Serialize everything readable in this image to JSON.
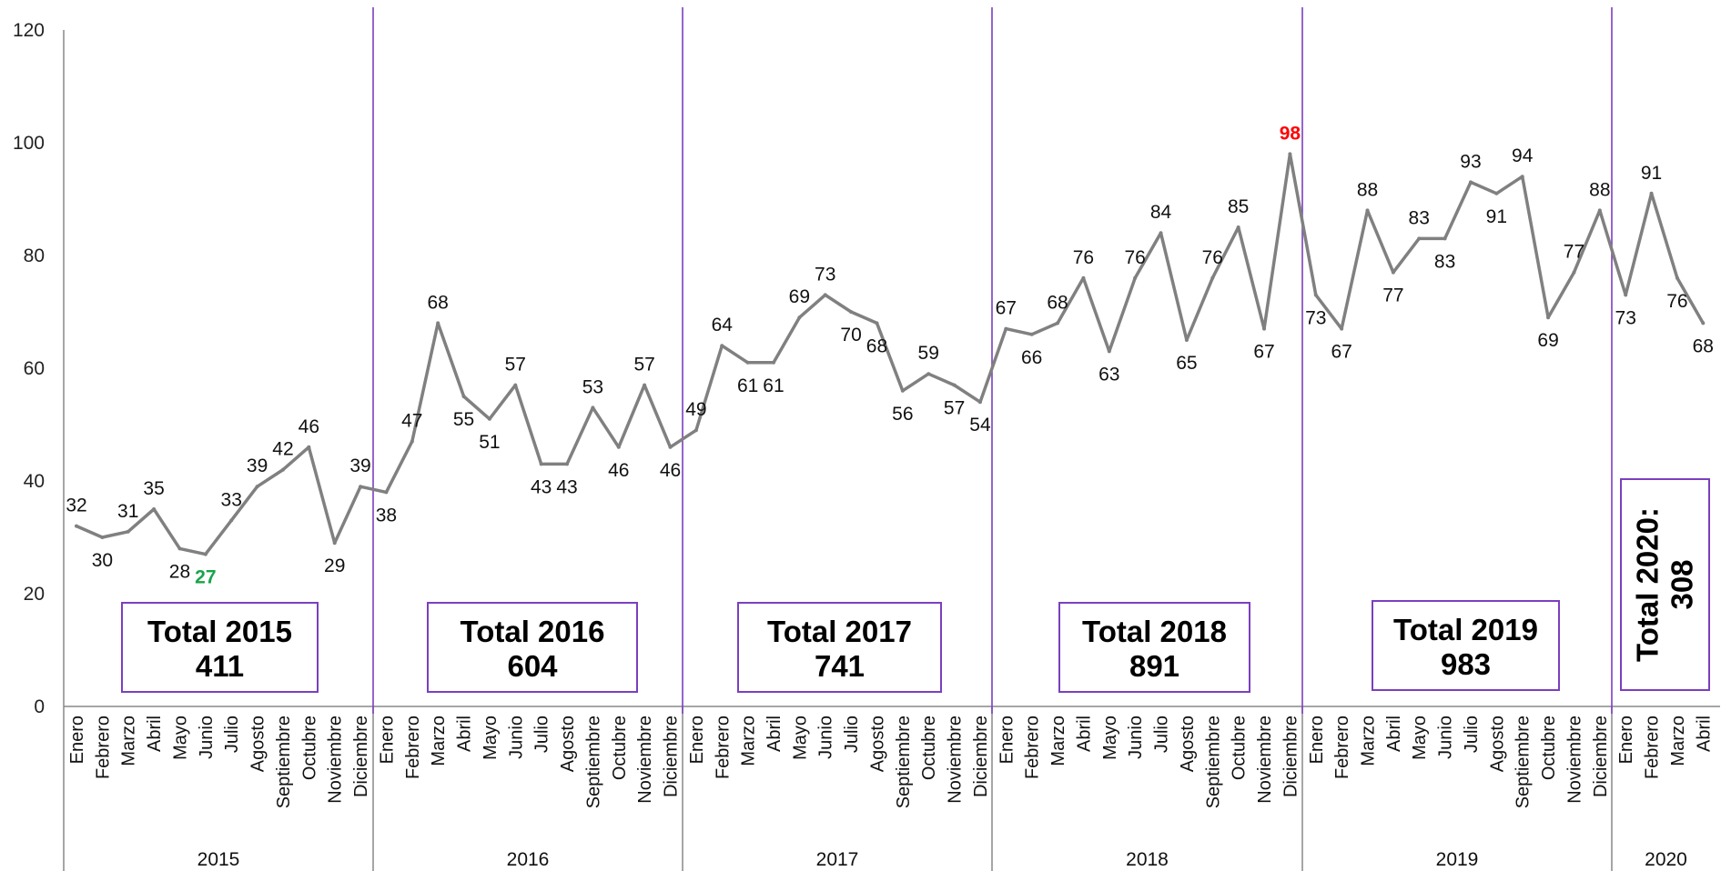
{
  "chart_data": {
    "type": "line",
    "ylim": [
      0,
      120
    ],
    "yticks": [
      0,
      20,
      40,
      60,
      80,
      100,
      120
    ],
    "line_color": "#808080",
    "divider_color": "#7b3fbf",
    "min_label_color": "#1aa34a",
    "max_label_color": "#ff0000",
    "years": [
      {
        "label": "2015",
        "months": [
          "Enero",
          "Febrero",
          "Marzo",
          "Abril",
          "Mayo",
          "Junio",
          "Julio",
          "Agosto",
          "Septiembre",
          "Octubre",
          "Noviembre",
          "Diciembre"
        ],
        "values": [
          32,
          30,
          31,
          35,
          28,
          27,
          33,
          39,
          42,
          46,
          29,
          39
        ],
        "total": "Total 2015\n411"
      },
      {
        "label": "2016",
        "months": [
          "Enero",
          "Febrero",
          "Marzo",
          "Abril",
          "Mayo",
          "Junio",
          "Julio",
          "Agosto",
          "Septiembre",
          "Octubre",
          "Noviembre",
          "Diciembre"
        ],
        "values": [
          38,
          47,
          68,
          55,
          51,
          57,
          43,
          43,
          53,
          46,
          57,
          46
        ],
        "total": "Total 2016\n604"
      },
      {
        "label": "2017",
        "months": [
          "Enero",
          "Febrero",
          "Marzo",
          "Abril",
          "Mayo",
          "Junio",
          "Julio",
          "Agosto",
          "Septiembre",
          "Octubre",
          "Noviembre",
          "Diciembre"
        ],
        "values": [
          49,
          64,
          61,
          61,
          69,
          73,
          70,
          68,
          56,
          59,
          57,
          54
        ],
        "total": "Total 2017\n741"
      },
      {
        "label": "2018",
        "months": [
          "Enero",
          "Febrero",
          "Marzo",
          "Abril",
          "Mayo",
          "Junio",
          "Julio",
          "Agosto",
          "Septiembre",
          "Octubre",
          "Noviembre",
          "Diciembre"
        ],
        "values": [
          67,
          66,
          68,
          76,
          63,
          76,
          84,
          65,
          76,
          85,
          67,
          98
        ],
        "total": "Total 2018\n891"
      },
      {
        "label": "2019",
        "months": [
          "Enero",
          "Febrero",
          "Marzo",
          "Abril",
          "Mayo",
          "Junio",
          "Julio",
          "Agosto",
          "Septiembre",
          "Octubre",
          "Noviembre",
          "Diciembre"
        ],
        "values": [
          73,
          67,
          88,
          77,
          83,
          83,
          93,
          91,
          94,
          69,
          77,
          88
        ],
        "total": "Total 2019\n983"
      },
      {
        "label": "2020",
        "months": [
          "Enero",
          "Febrero",
          "Marzo",
          "Abril"
        ],
        "values": [
          73,
          91,
          76,
          68
        ],
        "total": "Total 2020:\n308"
      }
    ]
  }
}
